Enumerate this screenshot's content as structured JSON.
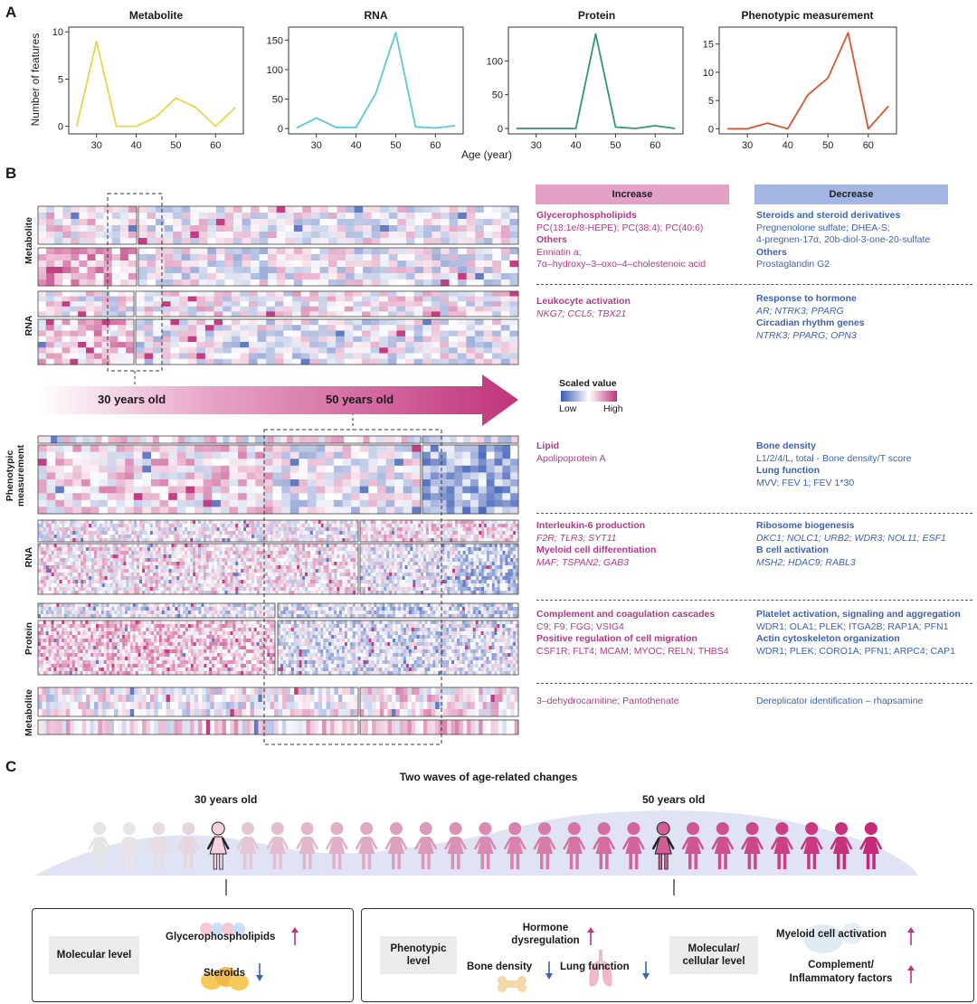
{
  "panels": {
    "a": "A",
    "b": "B",
    "c": "C"
  },
  "panel_a": {
    "ylabel": "Number of features",
    "xlabel": "Age (year)"
  },
  "chart_data": [
    {
      "type": "line",
      "title": "Metabolite",
      "color": "#e8d44c",
      "x": [
        25,
        30,
        35,
        40,
        45,
        50,
        55,
        60,
        65
      ],
      "values": [
        0,
        9,
        0,
        0,
        1,
        3,
        2,
        0,
        2
      ],
      "ylim": [
        -0.8,
        10.5
      ],
      "yticks": [
        0,
        5,
        10
      ],
      "xticks": [
        30,
        40,
        50,
        60
      ],
      "xlim": [
        23,
        67
      ]
    },
    {
      "type": "line",
      "title": "RNA",
      "color": "#5bc8d6",
      "x": [
        25,
        30,
        35,
        40,
        45,
        50,
        55,
        60,
        65
      ],
      "values": [
        1,
        18,
        2,
        2,
        60,
        163,
        3,
        1,
        5
      ],
      "ylim": [
        -9,
        172
      ],
      "yticks": [
        0,
        50,
        100,
        150
      ],
      "xticks": [
        30,
        40,
        50,
        60
      ],
      "xlim": [
        23,
        67
      ]
    },
    {
      "type": "line",
      "title": "Protein",
      "color": "#2e9a6a",
      "x": [
        25,
        30,
        35,
        40,
        45,
        50,
        55,
        60,
        65
      ],
      "values": [
        0,
        0,
        0,
        0,
        140,
        2,
        0,
        4,
        0
      ],
      "ylim": [
        -8,
        150
      ],
      "yticks": [
        0,
        50,
        100
      ],
      "xticks": [
        30,
        40,
        50,
        60
      ],
      "xlim": [
        23,
        67
      ]
    },
    {
      "type": "line",
      "title": "Phenotypic measurement",
      "color": "#d9562e",
      "x": [
        25,
        30,
        35,
        40,
        45,
        50,
        55,
        60,
        65
      ],
      "values": [
        0,
        0,
        1,
        0,
        6,
        9,
        17,
        0,
        4
      ],
      "ylim": [
        -0.9,
        18
      ],
      "yticks": [
        0,
        5,
        10,
        15
      ],
      "xticks": [
        30,
        40,
        50,
        60
      ],
      "xlim": [
        23,
        67
      ]
    }
  ],
  "panel_b": {
    "row_labels": {
      "metabolite1": "Metabolite",
      "rna1": "RNA",
      "pheno": "Phenotypic measurement",
      "rna2": "RNA",
      "protein": "Protein",
      "metabolite2": "Metabolite"
    },
    "arrow": {
      "label30": "30 years old",
      "label50": "50 years old"
    },
    "scale": {
      "title": "Scaled value",
      "low": "Low",
      "high": "High"
    },
    "headers": {
      "increase": "Increase",
      "decrease": "Decrease"
    },
    "colors": {
      "increase_header": "#e3a1c8",
      "decrease_header": "#a4b6e3",
      "low": "#3b5bb5",
      "high": "#c0337a"
    },
    "block1": {
      "inc_h1": "Glycerophospholipids",
      "inc_t1": "PC(18:1e/8-HEPE); PC(38:4); PC(40:6)",
      "inc_h2": "Others",
      "inc_t2": "Enniatin a;",
      "inc_t3": "7α–hydroxy–3–oxo–4–cholestenoic acid",
      "dec_h1": "Steroids and steroid derivatives",
      "dec_t1": "Pregnenolone sulfate; DHEA-S;",
      "dec_t2": "4-pregnen-17α, 20b-diol-3-one-20-sulfate",
      "dec_h2": "Others",
      "dec_t3": "Prostaglandin G2"
    },
    "block2": {
      "inc_h1": "Leukocyte activation",
      "inc_t1": "NKG7; CCL5; TBX21",
      "dec_h1": "Response to hormone",
      "dec_t1": "AR; NTRK3; PPARG",
      "dec_h2": "Circadian rhythm genes",
      "dec_t2": "NTRK3; PPARG; OPN3"
    },
    "block3": {
      "inc_h1": "Lipid",
      "inc_t1": "Apolipoprotein A",
      "dec_h1": "Bone density",
      "dec_t1": "L1/2/4/L, total - Bone density/T score",
      "dec_h2": "Lung function",
      "dec_t2": "MVV; FEV 1; FEV 1*30"
    },
    "block4": {
      "inc_h1": "Interleukin-6 production",
      "inc_t1": "F2R; TLR3; SYT11",
      "inc_h2": "Myeloid cell differentiation",
      "inc_t2": "MAF; TSPAN2; GAB3",
      "dec_h1": "Ribosome biogenesis",
      "dec_t1": "DKC1; NOLC1; URB2; WDR3; NOL11; ESF1",
      "dec_h2": "B cell activation",
      "dec_t2": "MSH2; HDAC9; RABL3"
    },
    "block5": {
      "inc_h1": "Complement and coagulation cascades",
      "inc_t1": "C9; F9; FGG; VSIG4",
      "inc_h2": "Positive regulation of cell migration",
      "inc_t2": "CSF1R; FLT4; MCAM; MYOC; RELN; THBS4",
      "dec_h1": "Platelet activation, signaling and aggregation",
      "dec_t1": "WDR1; OLA1; PLEK; ITGA2B; RAP1A; PFN1",
      "dec_h2": "Actin cytoskeleton organization",
      "dec_t2": "WDR1; PLEK; CORO1A; PFN1; ARPC4; CAP1"
    },
    "block6": {
      "inc_t1": "3–dehydrocarnitine; Pantothenate",
      "dec_t1": "Dereplicator identification – rhapsamine"
    }
  },
  "panel_c": {
    "title": "Two waves of age-related changes",
    "age30": "30 years old",
    "age50": "50 years old",
    "left_box": {
      "level": "Molecular level",
      "item1": "Glycerophospholipids",
      "item2": "Steroids"
    },
    "right_box": {
      "level1": "Phenotypic level",
      "item1": "Hormone dysregulation",
      "item2": "Bone density",
      "item3": "Lung function",
      "level2": "Molecular/ cellular level",
      "item4": "Myeloid cell activation",
      "item5": "Complement/ Inflammatory factors"
    }
  }
}
